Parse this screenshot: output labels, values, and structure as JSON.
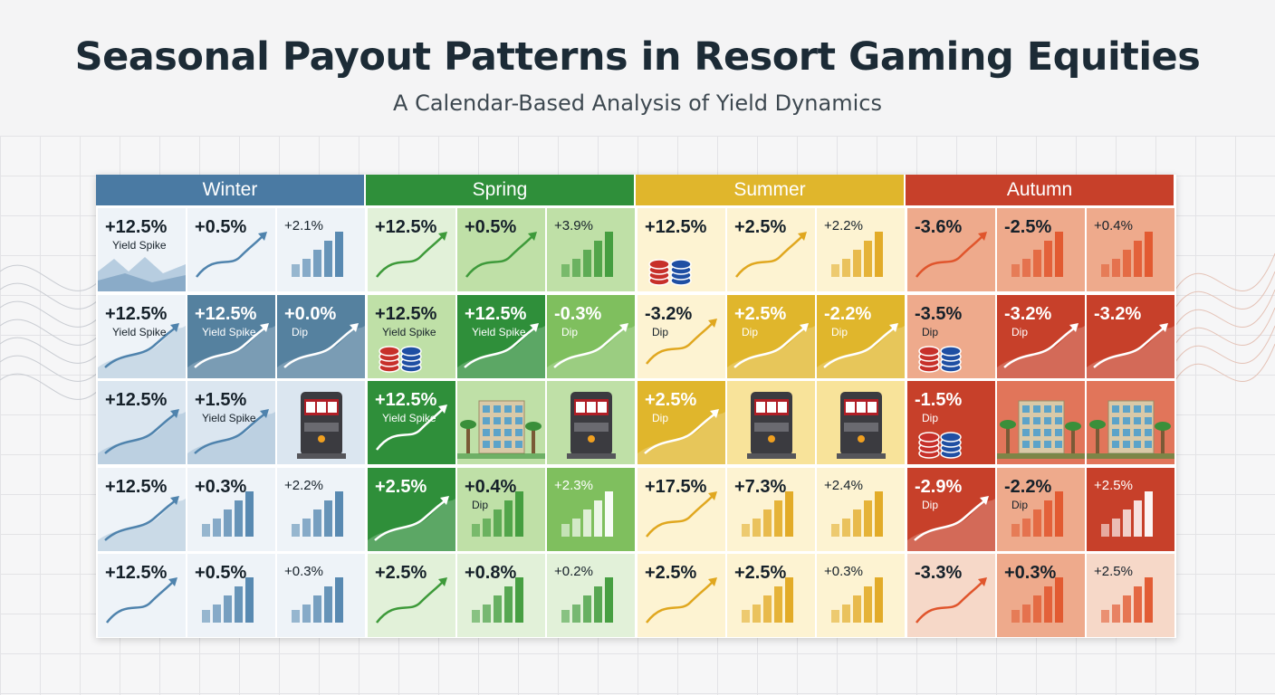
{
  "title": "Seasonal Payout Patterns in Resort Gaming Equities",
  "subtitle": "A Calendar-Based Analysis of Yield Dynamics",
  "chart_data": {
    "type": "table",
    "columns": [
      "Winter",
      "Spring",
      "Summer",
      "Autumn"
    ],
    "season_colors": {
      "Winter": "#4a7aa3",
      "Spring": "#2f8f3a",
      "Summer": "#e0b62c",
      "Autumn": "#c7402a"
    },
    "rows": [
      [
        {
          "value": "+12.5%",
          "label": "Yield Spike",
          "icon": "mountain-icon",
          "shade": 0
        },
        {
          "value": "+0.5%",
          "label": "",
          "icon": "trend-line-icon",
          "shade": 0
        },
        {
          "value": "+2.1%",
          "label": "",
          "icon": "bar-chart-icon",
          "shade": 0
        },
        {
          "value": "+12.5%",
          "label": "",
          "icon": "trend-line-icon",
          "shade": 0
        },
        {
          "value": "+0.5%",
          "label": "",
          "icon": "trend-line-icon",
          "shade": 1
        },
        {
          "value": "+3.9%",
          "label": "",
          "icon": "bar-chart-icon",
          "shade": 1
        },
        {
          "value": "+12.5%",
          "label": "",
          "icon": "casino-chips-icon",
          "shade": 0
        },
        {
          "value": "+2.5%",
          "label": "",
          "icon": "trend-line-icon",
          "shade": 0
        },
        {
          "value": "+2.2%",
          "label": "",
          "icon": "bar-chart-icon",
          "shade": 0
        },
        {
          "value": "-3.6%",
          "label": "",
          "icon": "trend-line-icon",
          "shade": 1
        },
        {
          "value": "-2.5%",
          "label": "",
          "icon": "bar-chart-icon",
          "shade": 1
        },
        {
          "value": "+0.4%",
          "label": "",
          "icon": "bar-chart-icon",
          "shade": 1
        }
      ],
      [
        {
          "value": "+12.5%",
          "label": "Yield Spike",
          "icon": "trend-area-icon",
          "shade": 0
        },
        {
          "value": "+12.5%",
          "label": "Yield Spike",
          "icon": "trend-area-icon",
          "shade": 3
        },
        {
          "value": "+0.0%",
          "label": "Dip",
          "icon": "trend-area-icon",
          "shade": 3
        },
        {
          "value": "+12.5%",
          "label": "Yield Spike",
          "icon": "casino-chips-icon",
          "shade": 1
        },
        {
          "value": "+12.5%",
          "label": "Yield Spike",
          "icon": "trend-area-icon",
          "shade": 3
        },
        {
          "value": "-0.3%",
          "label": "Dip",
          "icon": "trend-area-icon",
          "shade": 2
        },
        {
          "value": "-3.2%",
          "label": "Dip",
          "icon": "trend-line-icon",
          "shade": 0
        },
        {
          "value": "+2.5%",
          "label": "Dip",
          "icon": "trend-area-icon",
          "shade": 3
        },
        {
          "value": "-2.2%",
          "label": "Dip",
          "icon": "trend-area-icon",
          "shade": 3
        },
        {
          "value": "-3.5%",
          "label": "Dip",
          "icon": "casino-chips-icon",
          "shade": 1
        },
        {
          "value": "-3.2%",
          "label": "Dip",
          "icon": "trend-area-icon",
          "shade": 3
        },
        {
          "value": "-3.2%",
          "label": "",
          "icon": "trend-area-icon",
          "shade": 3
        }
      ],
      [
        {
          "value": "+12.5%",
          "label": "",
          "icon": "trend-area-icon",
          "shade": 1
        },
        {
          "value": "+1.5%",
          "label": "Yield Spike",
          "icon": "trend-area-icon",
          "shade": 1
        },
        {
          "value": "",
          "label": "",
          "icon": "slot-machine-icon",
          "shade": 1
        },
        {
          "value": "+12.5%",
          "label": "Yield Spike",
          "icon": "trend-line-icon",
          "shade": 3
        },
        {
          "value": "",
          "label": "",
          "icon": "resort-hotel-icon",
          "shade": 1
        },
        {
          "value": "",
          "label": "",
          "icon": "slot-machine-icon",
          "shade": 1
        },
        {
          "value": "+2.5%",
          "label": "Dip",
          "icon": "trend-area-icon",
          "shade": 3
        },
        {
          "value": "",
          "label": "",
          "icon": "slot-machine-icon",
          "shade": 1
        },
        {
          "value": "",
          "label": "",
          "icon": "slot-machine-icon",
          "shade": 1
        },
        {
          "value": "-1.5%",
          "label": "Dip",
          "icon": "casino-chips-icon",
          "shade": 3
        },
        {
          "value": "",
          "label": "",
          "icon": "resort-hotel-icon",
          "shade": 2
        },
        {
          "value": "",
          "label": "",
          "icon": "resort-hotel-icon",
          "shade": 2
        }
      ],
      [
        {
          "value": "+12.5%",
          "label": "",
          "icon": "trend-area-icon",
          "shade": 0
        },
        {
          "value": "+0.3%",
          "label": "",
          "icon": "bar-chart-icon",
          "shade": 0
        },
        {
          "value": "+2.2%",
          "label": "",
          "icon": "bar-chart-icon",
          "shade": 0
        },
        {
          "value": "+2.5%",
          "label": "",
          "icon": "trend-area-icon",
          "shade": 3
        },
        {
          "value": "+0.4%",
          "label": "Dip",
          "icon": "bar-chart-icon",
          "shade": 1
        },
        {
          "value": "+2.3%",
          "label": "",
          "icon": "bar-chart-icon",
          "shade": 2
        },
        {
          "value": "+17.5%",
          "label": "",
          "icon": "trend-line-icon",
          "shade": 0
        },
        {
          "value": "+7.3%",
          "label": "",
          "icon": "bar-chart-icon",
          "shade": 0
        },
        {
          "value": "+2.4%",
          "label": "",
          "icon": "bar-chart-icon",
          "shade": 0
        },
        {
          "value": "-2.9%",
          "label": "Dip",
          "icon": "trend-area-icon",
          "shade": 3
        },
        {
          "value": "-2.2%",
          "label": "Dip",
          "icon": "bar-chart-icon",
          "shade": 1
        },
        {
          "value": "+2.5%",
          "label": "",
          "icon": "bar-chart-icon",
          "shade": 3
        }
      ],
      [
        {
          "value": "+12.5%",
          "label": "",
          "icon": "trend-line-icon",
          "shade": 0
        },
        {
          "value": "+0.5%",
          "label": "",
          "icon": "bar-chart-icon",
          "shade": 0
        },
        {
          "value": "+0.3%",
          "label": "",
          "icon": "bar-chart-icon",
          "shade": 0
        },
        {
          "value": "+2.5%",
          "label": "",
          "icon": "trend-line-icon",
          "shade": 0
        },
        {
          "value": "+0.8%",
          "label": "",
          "icon": "bar-chart-icon",
          "shade": 0
        },
        {
          "value": "+0.2%",
          "label": "",
          "icon": "bar-chart-icon",
          "shade": 0
        },
        {
          "value": "+2.5%",
          "label": "",
          "icon": "trend-line-icon",
          "shade": 0
        },
        {
          "value": "+2.5%",
          "label": "",
          "icon": "bar-chart-icon",
          "shade": 0
        },
        {
          "value": "+0.3%",
          "label": "",
          "icon": "bar-chart-icon",
          "shade": 0
        },
        {
          "value": "-3.3%",
          "label": "",
          "icon": "trend-line-icon",
          "shade": 0
        },
        {
          "value": "+0.3%",
          "label": "",
          "icon": "bar-chart-icon",
          "shade": 1
        },
        {
          "value": "+2.5%",
          "label": "",
          "icon": "bar-chart-icon",
          "shade": 0
        }
      ]
    ]
  }
}
